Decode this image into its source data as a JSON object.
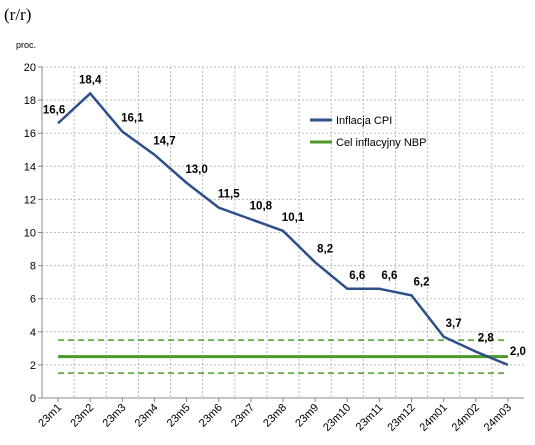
{
  "chart_data": {
    "type": "line",
    "subtitle": "(r/r)",
    "y_label": "proc.",
    "categories": [
      "23m1",
      "23m2",
      "23m3",
      "23m4",
      "23m5",
      "23m6",
      "23m7",
      "23m8",
      "23m9",
      "23m10",
      "23m11",
      "23m12",
      "24m01",
      "24m02",
      "24m03"
    ],
    "series": [
      {
        "name": "Inflacja CPI",
        "color": "#2e4f8a",
        "values": [
          16.6,
          18.4,
          16.1,
          14.7,
          13.0,
          11.5,
          10.8,
          10.1,
          8.2,
          6.6,
          6.6,
          6.2,
          3.7,
          2.8,
          2.0
        ],
        "value_labels": [
          "16,6",
          "18,4",
          "16,1",
          "14,7",
          "13,0",
          "11,5",
          "10,8",
          "10,1",
          "8,2",
          "6,6",
          "6,6",
          "6,2",
          "3,7",
          "2,8",
          "2,0"
        ]
      }
    ],
    "target": {
      "name": "Cel inflacyjny NBP",
      "color": "#4c9a2a",
      "value": 2.5,
      "band": [
        1.5,
        3.5
      ]
    },
    "ylim": [
      0,
      20
    ],
    "yticks": [
      0,
      2,
      4,
      6,
      8,
      10,
      12,
      14,
      16,
      18,
      20
    ],
    "grid": true
  }
}
